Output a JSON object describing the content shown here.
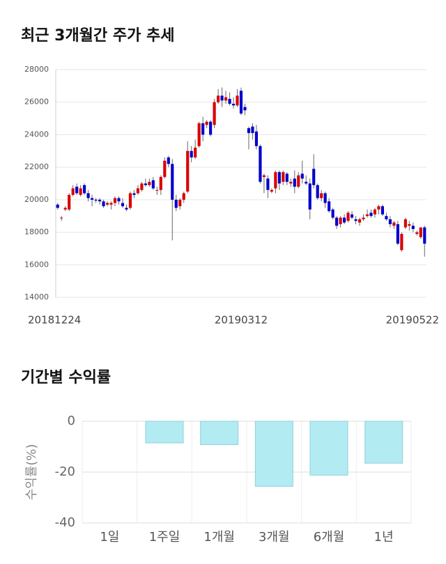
{
  "chart_data": [
    {
      "type": "candlestick",
      "title": "최근 3개월간 주가 추세",
      "categories": [
        "20181224",
        null,
        null,
        null,
        null,
        null,
        null,
        null,
        null,
        null,
        null,
        null,
        null,
        null,
        null,
        null,
        null,
        null,
        null,
        null,
        null,
        null,
        null,
        null,
        null,
        null,
        null,
        null,
        null,
        null,
        null,
        null,
        null,
        null,
        null,
        null,
        null,
        null,
        null,
        null,
        null,
        null,
        null,
        null,
        null,
        null,
        null,
        null,
        "20190312",
        null,
        null,
        null,
        null,
        null,
        null,
        null,
        null,
        null,
        null,
        null,
        null,
        null,
        null,
        null,
        null,
        null,
        null,
        null,
        null,
        null,
        null,
        null,
        null,
        null,
        null,
        null,
        null,
        null,
        null,
        null,
        null,
        null,
        null,
        null,
        null,
        null,
        null,
        null,
        null,
        null,
        null,
        null,
        null,
        null,
        null,
        null,
        "20190522"
      ],
      "open": [
        19700,
        18900,
        19400,
        19400,
        20300,
        20800,
        20300,
        20900,
        20400,
        20100,
        20000,
        20000,
        19900,
        19700,
        19700,
        19800,
        20100,
        19800,
        19500,
        19500,
        20400,
        20400,
        20600,
        21000,
        20900,
        21200,
        20600,
        20600,
        21400,
        22600,
        22200,
        20000,
        19600,
        20000,
        20500,
        23000,
        22600,
        23300,
        24700,
        24600,
        24800,
        24600,
        26000,
        26400,
        26100,
        26200,
        25900,
        25800,
        26700,
        25700,
        24400,
        24500,
        24200,
        23300,
        21400,
        21300,
        20500,
        20700,
        21700,
        21100,
        21600,
        21000,
        21300,
        20800,
        21600,
        21100,
        21000,
        21900,
        20900,
        20100,
        20400,
        19900,
        19400,
        18900,
        18500,
        18900,
        18700,
        19100,
        18800,
        18600,
        18800,
        19000,
        19200,
        19100,
        19400,
        19600,
        19000,
        18800,
        18400,
        18500,
        16900,
        18300,
        18400,
        18400,
        17900,
        17700,
        18300
      ],
      "high": [
        19800,
        19000,
        19600,
        20400,
        20900,
        21000,
        20900,
        21000,
        20600,
        20300,
        20100,
        20100,
        20000,
        19900,
        19900,
        20200,
        20200,
        20100,
        19700,
        20500,
        20600,
        20900,
        21100,
        21300,
        21300,
        21400,
        20800,
        21500,
        22600,
        22700,
        22500,
        20300,
        20100,
        20500,
        23600,
        23300,
        23700,
        24800,
        25100,
        24900,
        24900,
        26200,
        26800,
        26900,
        26700,
        26600,
        26300,
        26800,
        26900,
        25900,
        24500,
        24700,
        24600,
        23400,
        21600,
        21500,
        20700,
        21800,
        21800,
        21800,
        21700,
        21300,
        21800,
        21700,
        22400,
        21500,
        21300,
        22800,
        21000,
        20600,
        20500,
        20100,
        19500,
        19000,
        19000,
        19100,
        19300,
        19300,
        19000,
        18900,
        19100,
        19400,
        19400,
        19500,
        19700,
        19700,
        19200,
        19000,
        18700,
        18700,
        18000,
        18900,
        18700,
        18600,
        18100,
        18200,
        18400
      ],
      "low": [
        19400,
        18700,
        19300,
        19300,
        20200,
        20300,
        20200,
        20300,
        19900,
        19600,
        19800,
        19700,
        19500,
        19600,
        19400,
        19600,
        19700,
        19500,
        19300,
        19400,
        20100,
        20300,
        20500,
        20800,
        20800,
        20600,
        20300,
        20300,
        21300,
        22000,
        17500,
        19300,
        19400,
        19800,
        20400,
        22300,
        22500,
        23200,
        23600,
        24400,
        23900,
        24400,
        25900,
        25700,
        25900,
        25800,
        25600,
        25700,
        25200,
        25200,
        23100,
        23700,
        23100,
        21000,
        20400,
        20100,
        20400,
        20400,
        20600,
        20900,
        20900,
        20800,
        20400,
        20700,
        21000,
        20900,
        18800,
        20700,
        20000,
        19900,
        19500,
        19200,
        18800,
        18200,
        18300,
        18500,
        18600,
        18800,
        18500,
        18400,
        18700,
        18900,
        18900,
        18900,
        19100,
        19000,
        18700,
        18300,
        18200,
        17200,
        16800,
        18200,
        18100,
        18000,
        17800,
        17600,
        16500
      ],
      "close": [
        19500,
        18900,
        19500,
        20300,
        20700,
        20400,
        20700,
        20400,
        20100,
        20000,
        19950,
        19900,
        19600,
        19800,
        19800,
        20100,
        19900,
        19600,
        19400,
        20400,
        20300,
        20700,
        21000,
        20900,
        21100,
        20700,
        20600,
        21400,
        22400,
        22200,
        20000,
        19500,
        20000,
        20400,
        23000,
        22600,
        23200,
        24700,
        24000,
        24800,
        24000,
        26000,
        26400,
        26100,
        26300,
        25900,
        25800,
        26400,
        25300,
        25500,
        24100,
        24100,
        23300,
        21100,
        21500,
        20600,
        20600,
        21700,
        21000,
        21700,
        21100,
        21100,
        20800,
        21500,
        21300,
        21000,
        19400,
        20900,
        20100,
        20400,
        19800,
        19300,
        18900,
        18400,
        18900,
        18600,
        19200,
        18900,
        18700,
        18800,
        18900,
        19100,
        19000,
        19400,
        19600,
        19100,
        18800,
        18500,
        18600,
        17300,
        17900,
        18800,
        18500,
        18200,
        18000,
        18300,
        17300
      ],
      "up_color": "#d90000",
      "down_color": "#0000cc",
      "wick_color": "#666666",
      "ylim": [
        14000,
        28000
      ],
      "yticks": [
        14000,
        16000,
        18000,
        20000,
        22000,
        24000,
        26000,
        28000
      ],
      "grid": true
    },
    {
      "type": "bar",
      "title": "기간별 수익률",
      "y_label": "수익률(%)",
      "categories": [
        "1일",
        "1주일",
        "1개월",
        "3개월",
        "6개월",
        "1년"
      ],
      "values": [
        0,
        -8.5,
        -9.2,
        -25.6,
        -21.2,
        -16.5
      ],
      "color": "#b2ebf2",
      "edge_color": "#8fd0da",
      "ylim": [
        -40,
        0
      ],
      "yticks": [
        0,
        -20,
        -40
      ],
      "grid": true
    }
  ]
}
